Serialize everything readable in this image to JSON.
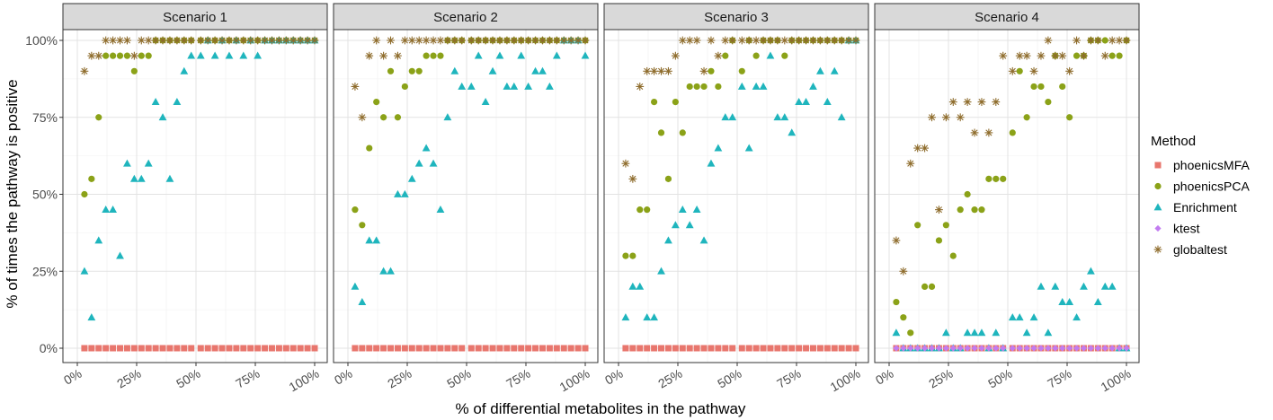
{
  "chart_data": {
    "type": "scatter",
    "ylabel": "% of times the pathway is positive",
    "xlabel": "% of differential metabolites in the pathway",
    "xlim": [
      0,
      1
    ],
    "ylim": [
      0,
      1
    ],
    "x_ticks": [
      "0%",
      "25%",
      "50%",
      "75%",
      "100%"
    ],
    "y_ticks": [
      "0%",
      "25%",
      "50%",
      "75%",
      "100%"
    ],
    "grid": true,
    "legend": {
      "title": "Method",
      "position": "right",
      "entries": [
        {
          "name": "phoenicsMFA",
          "color": "#E8766D",
          "marker": "square"
        },
        {
          "name": "phoenicsPCA",
          "color": "#8BA218",
          "marker": "circle"
        },
        {
          "name": "Enrichment",
          "color": "#1FB5BD",
          "marker": "triangle"
        },
        {
          "name": "ktest",
          "color": "#C27CF0",
          "marker": "diamond"
        },
        {
          "name": "globaltest",
          "color": "#8E6C2C",
          "marker": "asterisk"
        }
      ]
    },
    "x": [
      0.03,
      0.06,
      0.09,
      0.12,
      0.15,
      0.18,
      0.21,
      0.24,
      0.27,
      0.3,
      0.33,
      0.36,
      0.39,
      0.42,
      0.45,
      0.48,
      0.52,
      0.55,
      0.58,
      0.61,
      0.64,
      0.67,
      0.7,
      0.73,
      0.76,
      0.79,
      0.82,
      0.85,
      0.88,
      0.91,
      0.94,
      0.97,
      1.0
    ],
    "panels": [
      {
        "title": "Scenario 1",
        "series": [
          {
            "name": "phoenicsMFA",
            "values": [
              0,
              0,
              0,
              0,
              0,
              0,
              0,
              0,
              0,
              0,
              0,
              0,
              0,
              0,
              0,
              0,
              0,
              0,
              0,
              0,
              0,
              0,
              0,
              0,
              0,
              0,
              0,
              0,
              0,
              0,
              0,
              0,
              0
            ]
          },
          {
            "name": "phoenicsPCA",
            "values": [
              0.5,
              0.55,
              0.75,
              0.95,
              0.95,
              0.95,
              0.95,
              0.9,
              0.95,
              0.95,
              1,
              1,
              1,
              1,
              1,
              1,
              1,
              1,
              1,
              1,
              1,
              1,
              1,
              1,
              1,
              1,
              1,
              1,
              1,
              1,
              1,
              1,
              1
            ]
          },
          {
            "name": "Enrichment",
            "values": [
              0.25,
              0.1,
              0.35,
              0.45,
              0.45,
              0.3,
              0.6,
              0.55,
              0.55,
              0.6,
              0.8,
              0.75,
              0.55,
              0.8,
              0.9,
              0.95,
              0.95,
              1,
              0.95,
              1,
              0.95,
              1,
              0.95,
              1,
              0.95,
              1,
              1,
              1,
              1,
              1,
              1,
              1,
              1
            ]
          },
          {
            "name": "globaltest",
            "values": [
              0.9,
              0.95,
              0.95,
              1,
              1,
              1,
              1,
              0.95,
              1,
              1,
              1,
              1,
              1,
              1,
              1,
              1,
              1,
              1,
              1,
              1,
              1,
              1,
              1,
              1,
              1,
              1,
              1,
              1,
              1,
              1,
              1,
              1,
              1
            ]
          }
        ]
      },
      {
        "title": "Scenario 2",
        "series": [
          {
            "name": "phoenicsMFA",
            "values": [
              0,
              0,
              0,
              0,
              0,
              0,
              0,
              0,
              0,
              0,
              0,
              0,
              0,
              0,
              0,
              0,
              0,
              0,
              0,
              0,
              0,
              0,
              0,
              0,
              0,
              0,
              0,
              0,
              0,
              0,
              0,
              0,
              0
            ]
          },
          {
            "name": "phoenicsPCA",
            "values": [
              0.45,
              0.4,
              0.65,
              0.8,
              0.75,
              0.9,
              0.75,
              0.85,
              0.9,
              0.9,
              0.95,
              0.95,
              0.95,
              1,
              1,
              1,
              1,
              1,
              1,
              1,
              1,
              1,
              1,
              1,
              1,
              1,
              1,
              1,
              1,
              1,
              1,
              1,
              1
            ]
          },
          {
            "name": "Enrichment",
            "values": [
              0.2,
              0.15,
              0.35,
              0.35,
              0.25,
              0.25,
              0.5,
              0.5,
              0.55,
              0.6,
              0.65,
              0.6,
              0.45,
              0.75,
              0.9,
              0.85,
              0.85,
              0.95,
              0.8,
              0.9,
              0.95,
              0.85,
              0.85,
              0.95,
              0.85,
              0.9,
              0.9,
              0.85,
              0.95,
              1,
              1,
              1,
              0.95
            ]
          },
          {
            "name": "globaltest",
            "values": [
              0.85,
              0.75,
              0.95,
              1,
              0.95,
              1,
              0.95,
              1,
              1,
              1,
              1,
              1,
              1,
              1,
              1,
              1,
              1,
              1,
              1,
              1,
              1,
              1,
              1,
              1,
              1,
              1,
              1,
              1,
              1,
              1,
              1,
              1,
              1
            ]
          }
        ]
      },
      {
        "title": "Scenario 3",
        "series": [
          {
            "name": "phoenicsMFA",
            "values": [
              0,
              0,
              0,
              0,
              0,
              0,
              0,
              0,
              0,
              0,
              0,
              0,
              0,
              0,
              0,
              0,
              0,
              0,
              0,
              0,
              0,
              0,
              0,
              0,
              0,
              0,
              0,
              0,
              0,
              0,
              0,
              0,
              0
            ]
          },
          {
            "name": "phoenicsPCA",
            "values": [
              0.3,
              0.3,
              0.45,
              0.45,
              0.8,
              0.7,
              0.55,
              0.8,
              0.7,
              0.85,
              0.85,
              0.85,
              0.9,
              0.85,
              0.95,
              1,
              0.9,
              1,
              0.95,
              1,
              1,
              1,
              0.95,
              1,
              1,
              1,
              1,
              1,
              1,
              1,
              1,
              1,
              1
            ]
          },
          {
            "name": "Enrichment",
            "values": [
              0.1,
              0.2,
              0.2,
              0.1,
              0.1,
              0.25,
              0.35,
              0.4,
              0.45,
              0.4,
              0.45,
              0.35,
              0.6,
              0.65,
              0.75,
              0.75,
              0.85,
              0.65,
              0.85,
              0.85,
              0.95,
              0.75,
              0.75,
              0.7,
              0.8,
              0.8,
              0.85,
              0.9,
              0.8,
              0.9,
              0.75,
              1,
              1
            ]
          },
          {
            "name": "globaltest",
            "values": [
              0.6,
              0.55,
              0.85,
              0.9,
              0.9,
              0.9,
              0.9,
              0.95,
              1,
              1,
              1,
              0.9,
              1,
              0.95,
              1,
              1,
              1,
              1,
              1,
              1,
              1,
              1,
              1,
              1,
              1,
              1,
              1,
              1,
              1,
              1,
              1,
              1,
              1
            ]
          }
        ]
      },
      {
        "title": "Scenario 4",
        "series": [
          {
            "name": "phoenicsMFA",
            "values": [
              0,
              0,
              0,
              0,
              0,
              0,
              0,
              0,
              0,
              0,
              0,
              0,
              0,
              0,
              0,
              0,
              0,
              0,
              0,
              0,
              0,
              0,
              0,
              0,
              0,
              0,
              0,
              0,
              0,
              0,
              0,
              0,
              0
            ]
          },
          {
            "name": "phoenicsPCA",
            "values": [
              0.15,
              0.1,
              0.05,
              0.4,
              0.2,
              0.2,
              0.35,
              0.4,
              0.3,
              0.45,
              0.5,
              0.45,
              0.45,
              0.55,
              0.55,
              0.55,
              0.7,
              0.9,
              0.75,
              0.85,
              0.85,
              0.8,
              0.95,
              0.85,
              0.75,
              0.95,
              0.95,
              1,
              1,
              1,
              0.95,
              0.95,
              1
            ]
          },
          {
            "name": "Enrichment",
            "values": [
              0.05,
              0,
              0,
              0,
              0,
              0,
              0,
              0.05,
              0,
              0,
              0.05,
              0.05,
              0.05,
              0,
              0.05,
              0,
              0.1,
              0.1,
              0.05,
              0.1,
              0.2,
              0.05,
              0.2,
              0.15,
              0.15,
              0.1,
              0.2,
              0.25,
              0.15,
              0.2,
              0.2,
              0,
              0
            ]
          },
          {
            "name": "ktest",
            "values": [
              0,
              0,
              0,
              0,
              0,
              0,
              0,
              0,
              0,
              0,
              0,
              0,
              0,
              0,
              0,
              0,
              0,
              0,
              0,
              0,
              0,
              0,
              0,
              0,
              0,
              0,
              0,
              0,
              0,
              0,
              0,
              0,
              0
            ]
          },
          {
            "name": "globaltest",
            "values": [
              0.35,
              0.25,
              0.6,
              0.65,
              0.65,
              0.75,
              0.45,
              0.75,
              0.8,
              0.75,
              0.8,
              0.7,
              0.8,
              0.7,
              0.8,
              0.95,
              0.9,
              0.95,
              0.95,
              0.9,
              0.95,
              1,
              0.95,
              0.95,
              0.9,
              1,
              0.95,
              1,
              1,
              0.95,
              1,
              1,
              1
            ]
          }
        ]
      }
    ]
  }
}
